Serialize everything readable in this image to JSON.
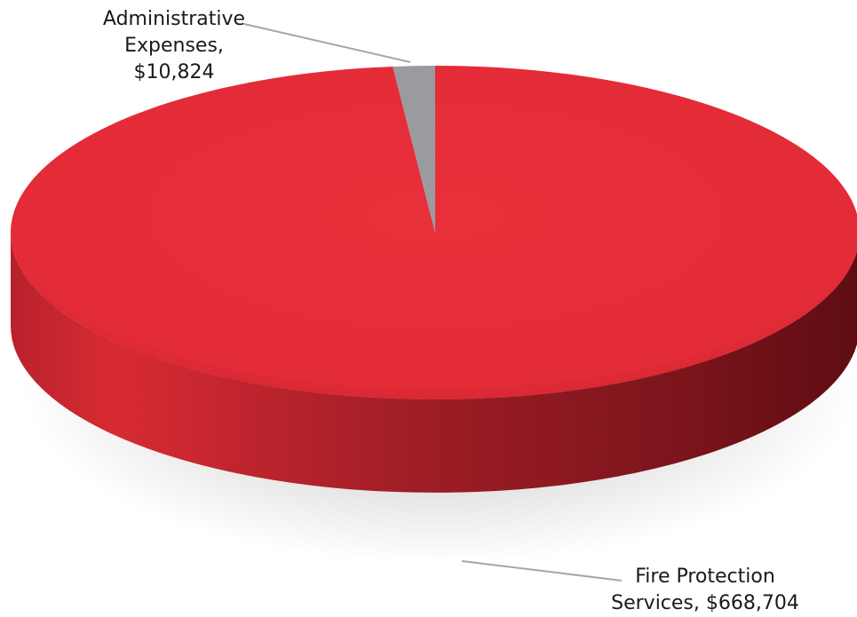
{
  "chart_data": {
    "type": "pie",
    "categories": [
      "Administrative Expenses",
      "Fire Protection Services"
    ],
    "values": [
      10824,
      668704
    ],
    "labels": [
      [
        "Administrative",
        "Expenses,",
        "$10,824"
      ],
      [
        "Fire Protection",
        "Services, $668,704"
      ]
    ],
    "colors": [
      "#9a9b9f",
      "#e32c38"
    ],
    "style": "3d"
  }
}
